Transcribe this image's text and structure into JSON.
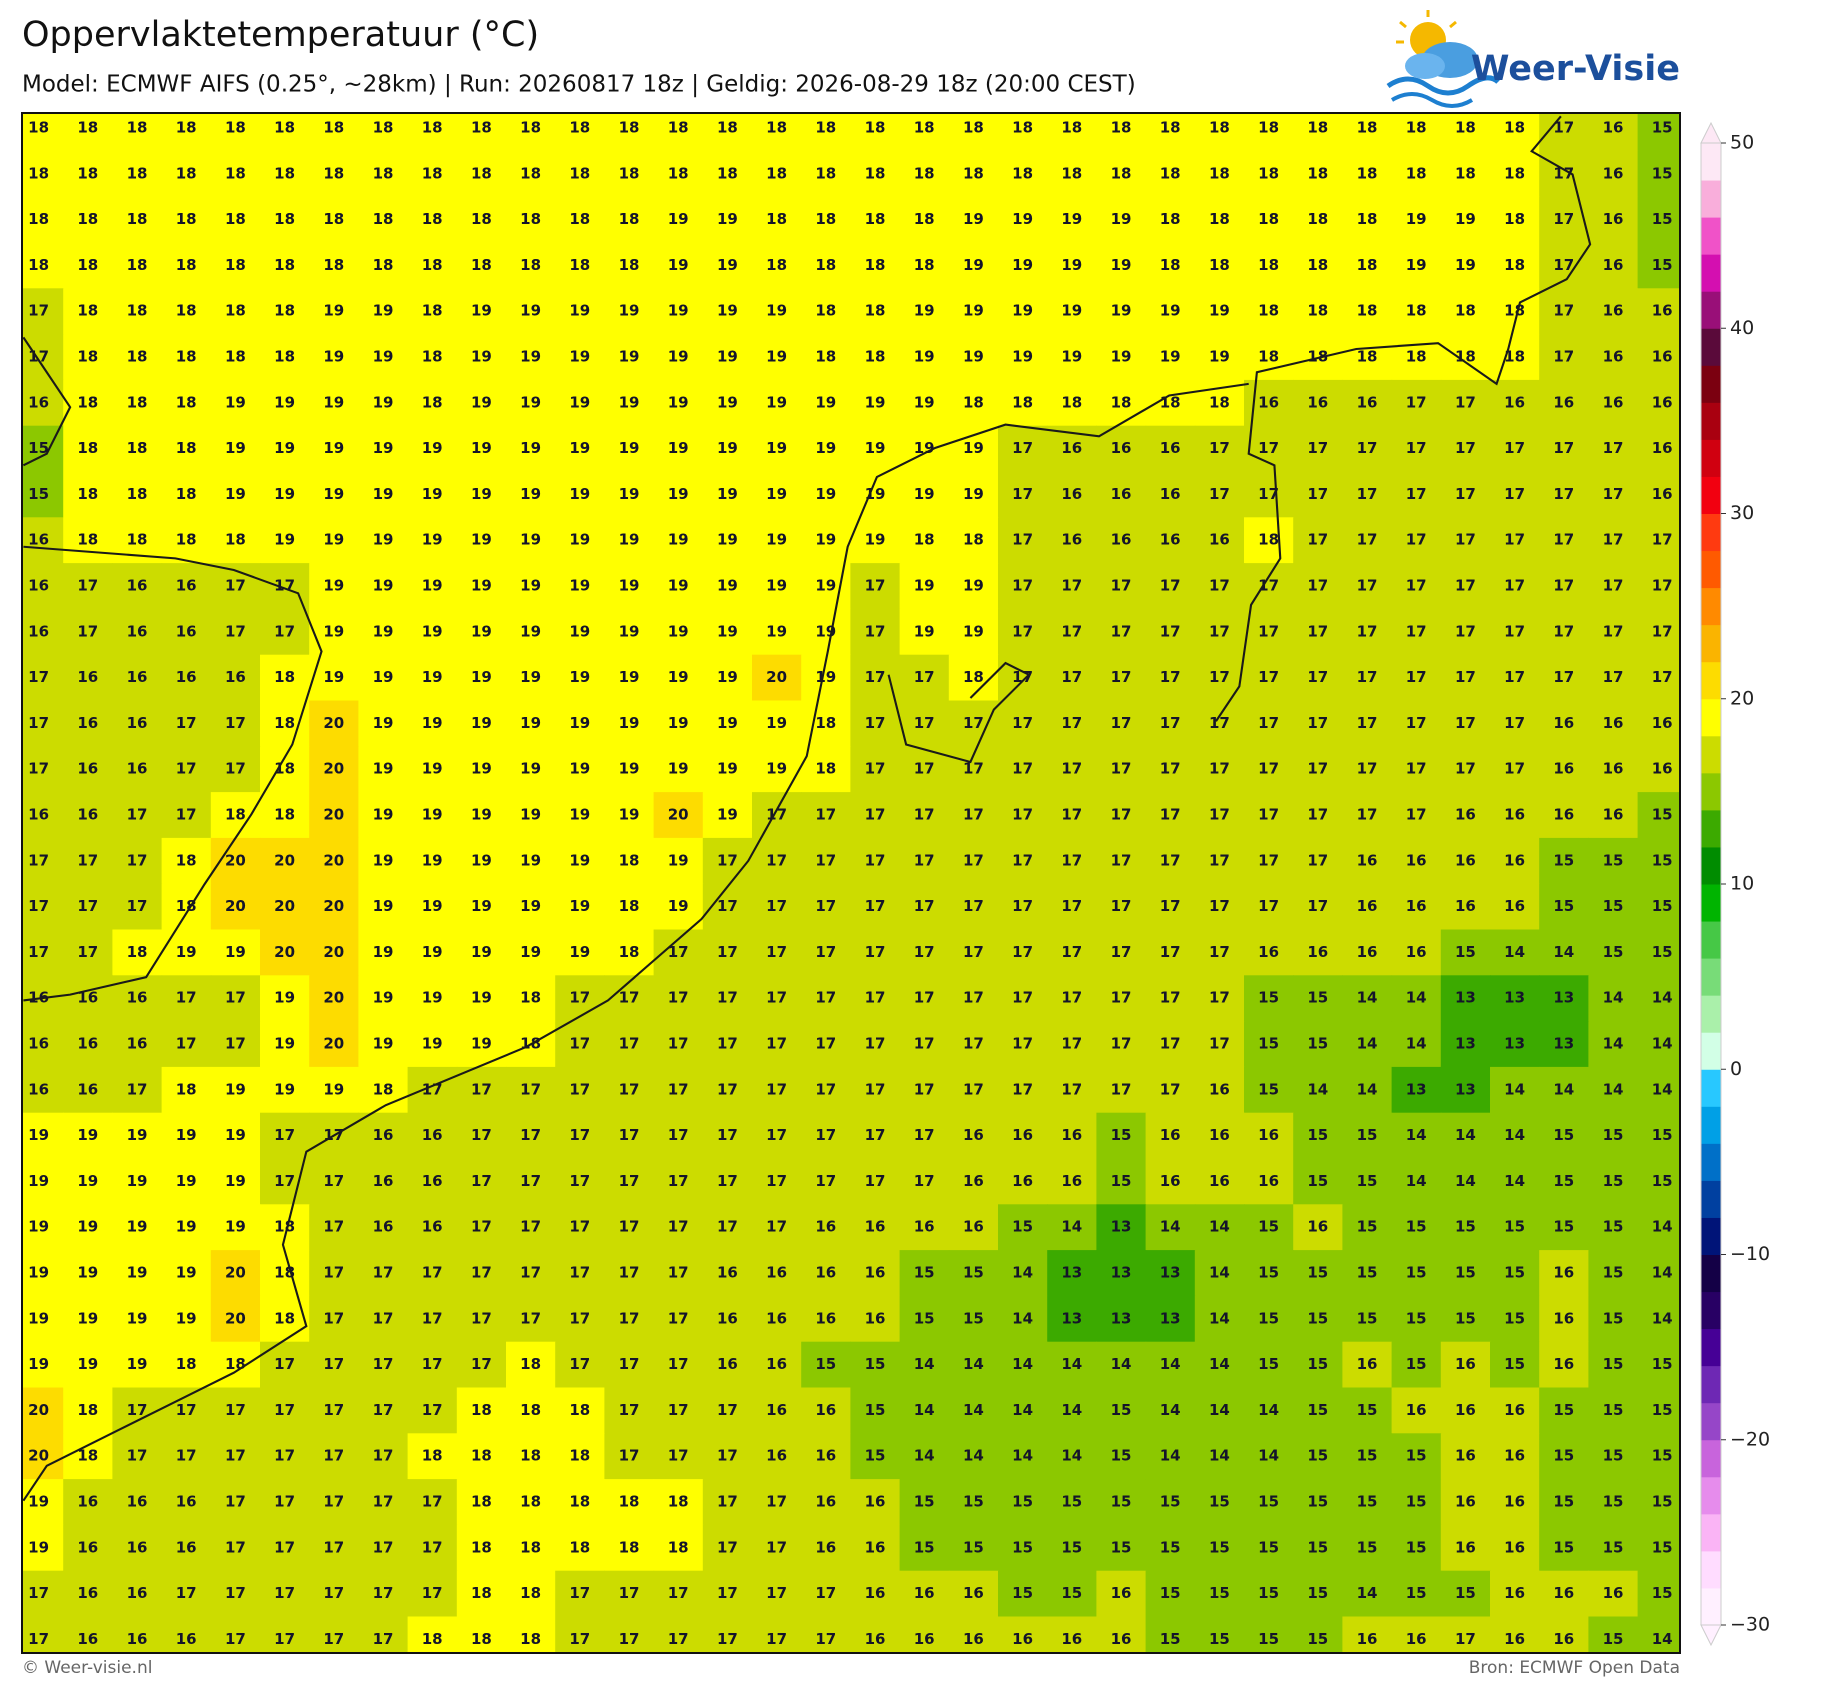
{
  "header": {
    "title": "Oppervlaktetemperatuur (°C)",
    "subtitle": "Model: ECMWF AIFS (0.25°, ~28km)  |  Run: 20260817 18z  |  Geldig: 2026-08-29 18z (20:00 CEST)"
  },
  "logo": "Weer-Visie",
  "grid": {
    "rows": [
      [
        18,
        18,
        18,
        18,
        18,
        18,
        18,
        18,
        18,
        18,
        18,
        18,
        18,
        18,
        18,
        18,
        18,
        18,
        18,
        18,
        18,
        18,
        18,
        18,
        18,
        18,
        18,
        18,
        18,
        18,
        18,
        17,
        16,
        15
      ],
      [
        18,
        18,
        18,
        18,
        18,
        18,
        18,
        18,
        18,
        18,
        18,
        18,
        18,
        18,
        18,
        18,
        18,
        18,
        18,
        18,
        18,
        18,
        18,
        18,
        18,
        18,
        18,
        18,
        18,
        18,
        18,
        17,
        16,
        15
      ],
      [
        18,
        18,
        18,
        18,
        18,
        18,
        18,
        18,
        18,
        18,
        18,
        18,
        18,
        19,
        19,
        18,
        18,
        18,
        18,
        19,
        19,
        19,
        19,
        18,
        18,
        18,
        18,
        18,
        19,
        19,
        18,
        17,
        16,
        15
      ],
      [
        18,
        18,
        18,
        18,
        18,
        18,
        18,
        18,
        18,
        18,
        18,
        18,
        18,
        19,
        19,
        18,
        18,
        18,
        18,
        19,
        19,
        19,
        19,
        18,
        18,
        18,
        18,
        18,
        19,
        19,
        18,
        17,
        16,
        15
      ],
      [
        17,
        18,
        18,
        18,
        18,
        18,
        19,
        19,
        18,
        19,
        19,
        19,
        19,
        19,
        19,
        19,
        18,
        18,
        19,
        19,
        19,
        19,
        19,
        19,
        19,
        18,
        18,
        18,
        18,
        18,
        18,
        17,
        16,
        16
      ],
      [
        17,
        18,
        18,
        18,
        18,
        18,
        19,
        19,
        18,
        19,
        19,
        19,
        19,
        19,
        19,
        19,
        18,
        18,
        19,
        19,
        19,
        19,
        19,
        19,
        19,
        18,
        18,
        18,
        18,
        18,
        18,
        17,
        16,
        16
      ],
      [
        16,
        18,
        18,
        18,
        19,
        19,
        19,
        19,
        18,
        19,
        19,
        19,
        19,
        19,
        19,
        19,
        19,
        19,
        19,
        18,
        18,
        18,
        18,
        18,
        18,
        16,
        16,
        16,
        17,
        17,
        16,
        16,
        16,
        16
      ],
      [
        15,
        18,
        18,
        18,
        19,
        19,
        19,
        19,
        19,
        19,
        19,
        19,
        19,
        19,
        19,
        19,
        19,
        19,
        19,
        19,
        17,
        16,
        16,
        16,
        17,
        17,
        17,
        17,
        17,
        17,
        17,
        17,
        17,
        16
      ],
      [
        15,
        18,
        18,
        18,
        19,
        19,
        19,
        19,
        19,
        19,
        19,
        19,
        19,
        19,
        19,
        19,
        19,
        19,
        19,
        19,
        17,
        16,
        16,
        16,
        17,
        17,
        17,
        17,
        17,
        17,
        17,
        17,
        17,
        16
      ],
      [
        16,
        18,
        18,
        18,
        18,
        19,
        19,
        19,
        19,
        19,
        19,
        19,
        19,
        19,
        19,
        19,
        19,
        19,
        18,
        18,
        17,
        16,
        16,
        16,
        16,
        18,
        17,
        17,
        17,
        17,
        17,
        17,
        17,
        17
      ],
      [
        16,
        17,
        16,
        16,
        17,
        17,
        19,
        19,
        19,
        19,
        19,
        19,
        19,
        19,
        19,
        19,
        19,
        17,
        19,
        19,
        17,
        17,
        17,
        17,
        17,
        17,
        17,
        17,
        17,
        17,
        17,
        17,
        17,
        17
      ],
      [
        16,
        17,
        16,
        16,
        17,
        17,
        19,
        19,
        19,
        19,
        19,
        19,
        19,
        19,
        19,
        19,
        19,
        17,
        19,
        19,
        17,
        17,
        17,
        17,
        17,
        17,
        17,
        17,
        17,
        17,
        17,
        17,
        17,
        17
      ],
      [
        17,
        16,
        16,
        16,
        16,
        18,
        19,
        19,
        19,
        19,
        19,
        19,
        19,
        19,
        19,
        20,
        19,
        17,
        17,
        18,
        17,
        17,
        17,
        17,
        17,
        17,
        17,
        17,
        17,
        17,
        17,
        17,
        17,
        17
      ],
      [
        17,
        16,
        16,
        17,
        17,
        18,
        20,
        19,
        19,
        19,
        19,
        19,
        19,
        19,
        19,
        19,
        18,
        17,
        17,
        17,
        17,
        17,
        17,
        17,
        17,
        17,
        17,
        17,
        17,
        17,
        17,
        16,
        16,
        16
      ],
      [
        17,
        16,
        16,
        17,
        17,
        18,
        20,
        19,
        19,
        19,
        19,
        19,
        19,
        19,
        19,
        19,
        18,
        17,
        17,
        17,
        17,
        17,
        17,
        17,
        17,
        17,
        17,
        17,
        17,
        17,
        17,
        16,
        16,
        16
      ],
      [
        16,
        16,
        17,
        17,
        18,
        18,
        20,
        19,
        19,
        19,
        19,
        19,
        19,
        20,
        19,
        17,
        17,
        17,
        17,
        17,
        17,
        17,
        17,
        17,
        17,
        17,
        17,
        17,
        17,
        16,
        16,
        16,
        16,
        15
      ],
      [
        17,
        17,
        17,
        18,
        20,
        20,
        20,
        19,
        19,
        19,
        19,
        19,
        18,
        19,
        17,
        17,
        17,
        17,
        17,
        17,
        17,
        17,
        17,
        17,
        17,
        17,
        17,
        16,
        16,
        16,
        16,
        15,
        15,
        15
      ],
      [
        17,
        17,
        17,
        18,
        20,
        20,
        20,
        19,
        19,
        19,
        19,
        19,
        18,
        19,
        17,
        17,
        17,
        17,
        17,
        17,
        17,
        17,
        17,
        17,
        17,
        17,
        17,
        16,
        16,
        16,
        16,
        15,
        15,
        15
      ],
      [
        17,
        17,
        18,
        19,
        19,
        20,
        20,
        19,
        19,
        19,
        19,
        19,
        18,
        17,
        17,
        17,
        17,
        17,
        17,
        17,
        17,
        17,
        17,
        17,
        17,
        16,
        16,
        16,
        16,
        15,
        14,
        14,
        15,
        15
      ],
      [
        16,
        16,
        16,
        17,
        17,
        19,
        20,
        19,
        19,
        19,
        18,
        17,
        17,
        17,
        17,
        17,
        17,
        17,
        17,
        17,
        17,
        17,
        17,
        17,
        17,
        15,
        15,
        14,
        14,
        13,
        13,
        13,
        14,
        14
      ],
      [
        16,
        16,
        16,
        17,
        17,
        19,
        20,
        19,
        19,
        19,
        18,
        17,
        17,
        17,
        17,
        17,
        17,
        17,
        17,
        17,
        17,
        17,
        17,
        17,
        17,
        15,
        15,
        14,
        14,
        13,
        13,
        13,
        14,
        14
      ],
      [
        16,
        16,
        17,
        18,
        19,
        19,
        19,
        18,
        17,
        17,
        17,
        17,
        17,
        17,
        17,
        17,
        17,
        17,
        17,
        17,
        17,
        17,
        17,
        17,
        16,
        15,
        14,
        14,
        13,
        13,
        14,
        14,
        14,
        14
      ],
      [
        19,
        19,
        19,
        19,
        19,
        17,
        17,
        16,
        16,
        17,
        17,
        17,
        17,
        17,
        17,
        17,
        17,
        17,
        17,
        16,
        16,
        16,
        15,
        16,
        16,
        16,
        15,
        15,
        14,
        14,
        14,
        15,
        15,
        15
      ],
      [
        19,
        19,
        19,
        19,
        19,
        17,
        17,
        16,
        16,
        17,
        17,
        17,
        17,
        17,
        17,
        17,
        17,
        17,
        17,
        16,
        16,
        16,
        15,
        16,
        16,
        16,
        15,
        15,
        14,
        14,
        14,
        15,
        15,
        15
      ],
      [
        19,
        19,
        19,
        19,
        19,
        18,
        17,
        16,
        16,
        17,
        17,
        17,
        17,
        17,
        17,
        17,
        16,
        16,
        16,
        16,
        15,
        14,
        13,
        14,
        14,
        15,
        16,
        15,
        15,
        15,
        15,
        15,
        15,
        14
      ],
      [
        19,
        19,
        19,
        19,
        20,
        18,
        17,
        17,
        17,
        17,
        17,
        17,
        17,
        17,
        16,
        16,
        16,
        16,
        15,
        15,
        14,
        13,
        13,
        13,
        14,
        15,
        15,
        15,
        15,
        15,
        15,
        16,
        15,
        14
      ],
      [
        19,
        19,
        19,
        19,
        20,
        18,
        17,
        17,
        17,
        17,
        17,
        17,
        17,
        17,
        16,
        16,
        16,
        16,
        15,
        15,
        14,
        13,
        13,
        13,
        14,
        15,
        15,
        15,
        15,
        15,
        15,
        16,
        15,
        14
      ],
      [
        19,
        19,
        19,
        18,
        18,
        17,
        17,
        17,
        17,
        17,
        18,
        17,
        17,
        17,
        16,
        16,
        15,
        15,
        14,
        14,
        14,
        14,
        14,
        14,
        14,
        15,
        15,
        16,
        15,
        16,
        15,
        16,
        15,
        15
      ],
      [
        20,
        18,
        17,
        17,
        17,
        17,
        17,
        17,
        17,
        18,
        18,
        18,
        17,
        17,
        17,
        16,
        16,
        15,
        14,
        14,
        14,
        14,
        15,
        14,
        14,
        14,
        15,
        15,
        16,
        16,
        16,
        15,
        15,
        15
      ],
      [
        20,
        18,
        17,
        17,
        17,
        17,
        17,
        17,
        18,
        18,
        18,
        18,
        17,
        17,
        17,
        16,
        16,
        15,
        14,
        14,
        14,
        14,
        15,
        14,
        14,
        14,
        15,
        15,
        15,
        16,
        16,
        15,
        15,
        15
      ],
      [
        19,
        16,
        16,
        16,
        17,
        17,
        17,
        17,
        17,
        18,
        18,
        18,
        18,
        18,
        17,
        17,
        16,
        16,
        15,
        15,
        15,
        15,
        15,
        15,
        15,
        15,
        15,
        15,
        15,
        16,
        16,
        15,
        15,
        15
      ],
      [
        19,
        16,
        16,
        16,
        17,
        17,
        17,
        17,
        17,
        18,
        18,
        18,
        18,
        18,
        17,
        17,
        16,
        16,
        15,
        15,
        15,
        15,
        15,
        15,
        15,
        15,
        15,
        15,
        15,
        16,
        16,
        15,
        15,
        15
      ],
      [
        17,
        16,
        16,
        17,
        17,
        17,
        17,
        17,
        17,
        18,
        18,
        17,
        17,
        17,
        17,
        17,
        17,
        16,
        16,
        16,
        15,
        15,
        16,
        15,
        15,
        15,
        15,
        14,
        15,
        15,
        16,
        16,
        16,
        15
      ],
      [
        17,
        16,
        16,
        16,
        17,
        17,
        17,
        17,
        18,
        18,
        18,
        17,
        17,
        17,
        17,
        17,
        17,
        16,
        16,
        16,
        16,
        16,
        16,
        15,
        15,
        15,
        15,
        16,
        16,
        17,
        16,
        16,
        15,
        14
      ]
    ]
  },
  "colorbar": {
    "lim": [
      -30,
      50
    ],
    "ticks": [
      50,
      40,
      30,
      20,
      10,
      0,
      {
        "value": -10,
        "label": "−10"
      },
      {
        "value": -20,
        "label": "−20"
      },
      {
        "value": -30,
        "label": "−30"
      }
    ],
    "colors": [
      "#fff0ff",
      "#ffdcff",
      "#fab4f5",
      "#e68cec",
      "#c864dc",
      "#9646c8",
      "#6e28b4",
      "#460096",
      "#280064",
      "#140046",
      "#001478",
      "#0040a0",
      "#0070c8",
      "#00a0e6",
      "#28c8ff",
      "#d2ffe6",
      "#aaf0aa",
      "#78dc78",
      "#46c846",
      "#00b400",
      "#008c00",
      "#3caa00",
      "#8cc800",
      "#ccdc00",
      "#ffff00",
      "#fddc00",
      "#fab400",
      "#ff8a00",
      "#ff5a00",
      "#ff3a10",
      "#f20010",
      "#d00010",
      "#a90010",
      "#7b0010",
      "#5a0a3a",
      "#990f78",
      "#d40fb0",
      "#f052c8",
      "#f9aedb",
      "#fde8f5"
    ]
  },
  "footer": {
    "left": "© Weer-visie.nl",
    "right": "Bron: ECMWF Open Data"
  }
}
